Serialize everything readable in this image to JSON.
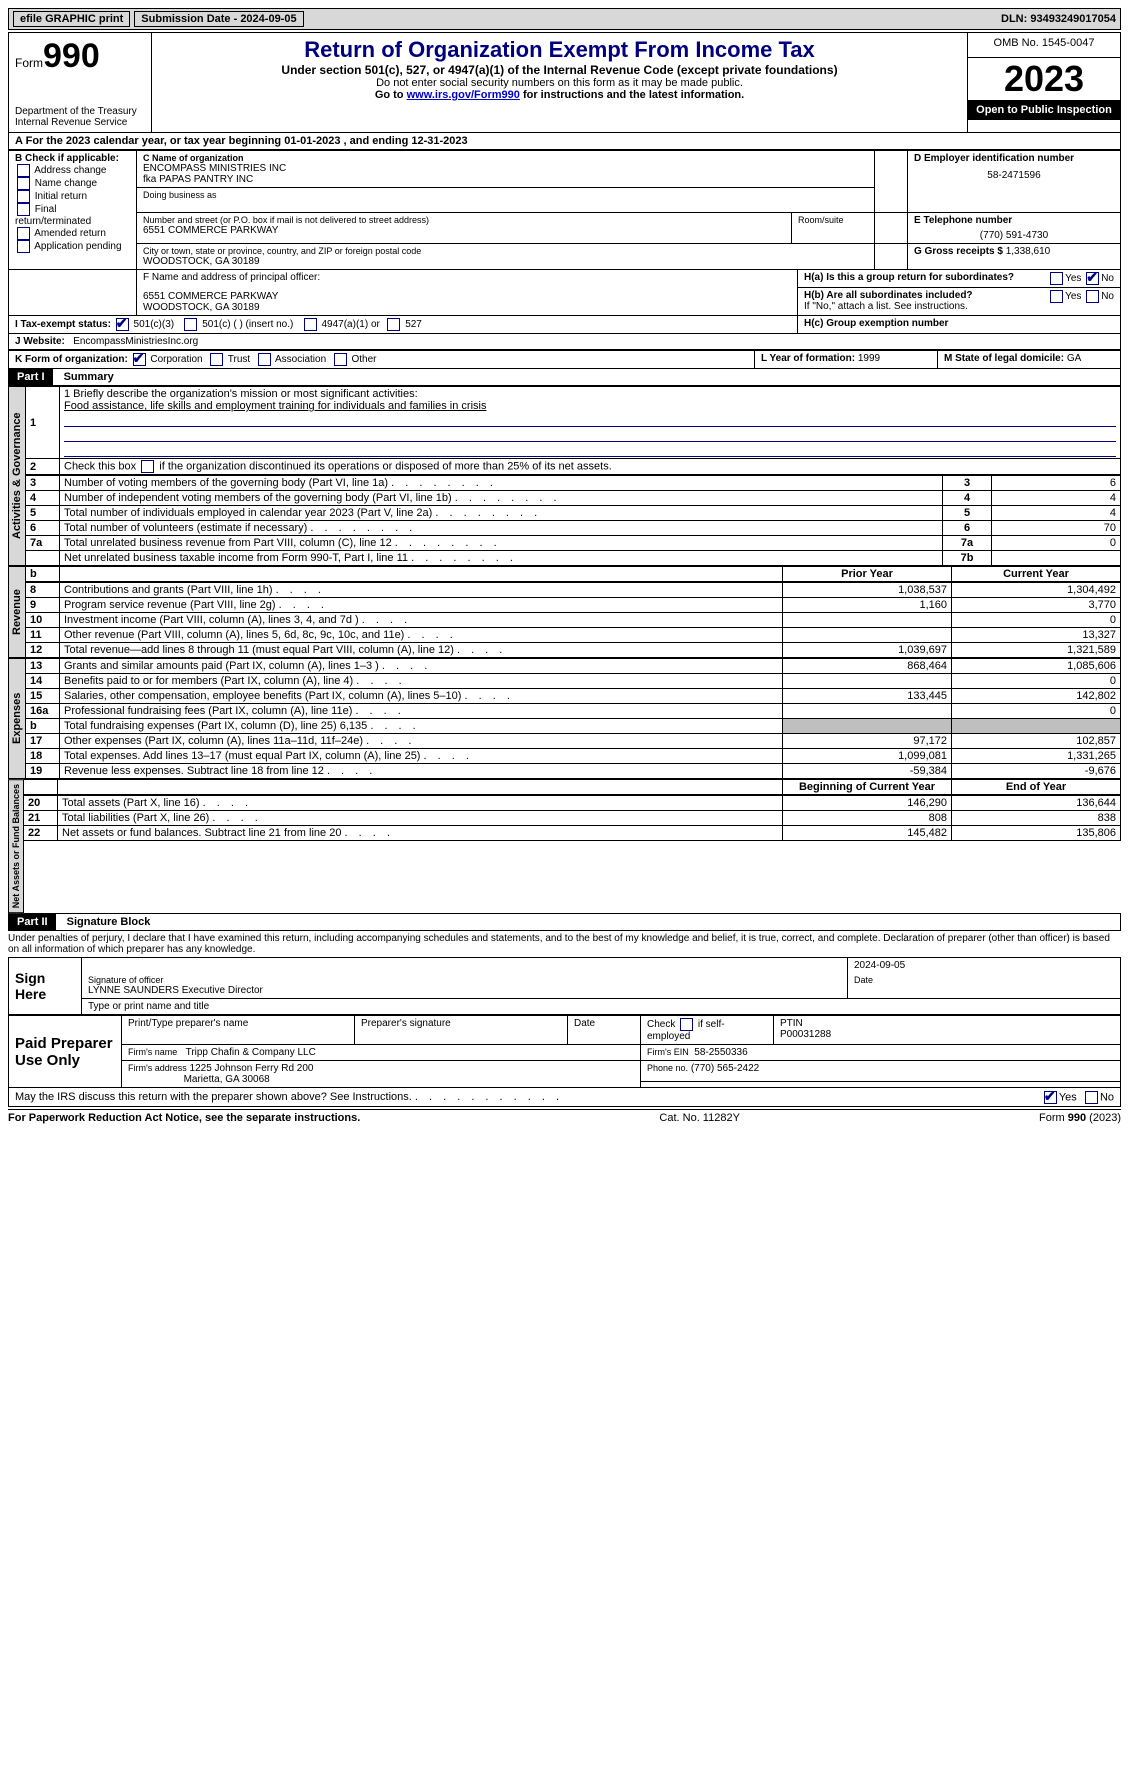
{
  "top_bar": {
    "efile": "efile GRAPHIC print",
    "submission_label": "Submission Date - 2024-09-05",
    "dln_label": "DLN: 93493249017054"
  },
  "header": {
    "form_label": "Form",
    "form_number": "990",
    "dept": "Department of the Treasury\nInternal Revenue Service",
    "title": "Return of Organization Exempt From Income Tax",
    "subtitle": "Under section 501(c), 527, or 4947(a)(1) of the Internal Revenue Code (except private foundations)",
    "note1": "Do not enter social security numbers on this form as it may be made public.",
    "note2": "Go to www.irs.gov/Form990 for instructions and the latest information.",
    "link": "www.irs.gov/Form990",
    "omb": "OMB No. 1545-0047",
    "year": "2023",
    "inspection": "Open to Public Inspection"
  },
  "line_a": "For the 2023 calendar year, or tax year beginning 01-01-2023     , and ending 12-31-2023",
  "box_b": {
    "label": "B Check if applicable:",
    "items": [
      "Address change",
      "Name change",
      "Initial return",
      "Final return/terminated",
      "Amended return",
      "Application pending"
    ]
  },
  "box_c": {
    "name_label": "C Name of organization",
    "name": "ENCOMPASS MINISTRIES INC",
    "fka": "fka PAPAS PANTRY INC",
    "dba_label": "Doing business as",
    "addr_label": "Number and street (or P.O. box if mail is not delivered to street address)",
    "room_label": "Room/suite",
    "addr": "6551 COMMERCE PARKWAY",
    "city_label": "City or town, state or province, country, and ZIP or foreign postal code",
    "city": "WOODSTOCK, GA  30189"
  },
  "box_d": {
    "label": "D Employer identification number",
    "value": "58-2471596"
  },
  "box_e": {
    "label": "E Telephone number",
    "value": "(770) 591-4730"
  },
  "box_g": {
    "label": "G Gross receipts $",
    "value": "1,338,610"
  },
  "box_f": {
    "label": "F  Name and address of principal officer:",
    "addr1": "6551 COMMERCE PARKWAY",
    "addr2": "WOODSTOCK, GA  30189"
  },
  "box_h": {
    "a_label": "H(a)  Is this a group return for subordinates?",
    "b_label": "H(b)  Are all subordinates included?",
    "b_note": "If \"No,\" attach a list. See instructions.",
    "c_label": "H(c)  Group exemption number",
    "yes": "Yes",
    "no": "No"
  },
  "box_i": {
    "label": "I   Tax-exempt status:",
    "opt1": "501(c)(3)",
    "opt2": "501(c) (  ) (insert no.)",
    "opt3": "4947(a)(1) or",
    "opt4": "527"
  },
  "box_j": {
    "label": "J   Website:",
    "value": "EncompassMinistriesInc.org"
  },
  "box_k": {
    "label": "K Form of organization:",
    "opts": [
      "Corporation",
      "Trust",
      "Association",
      "Other"
    ]
  },
  "box_l": {
    "label": "L Year of formation:",
    "value": "1999"
  },
  "box_m": {
    "label": "M State of legal domicile:",
    "value": "GA"
  },
  "part1": {
    "header": "Part I",
    "title": "Summary",
    "q1_label": "1  Briefly describe the organization's mission or most significant activities:",
    "q1_value": "Food assistance, life skills and employment training for individuals and families in crisis",
    "q2": "2   Check this box       if the organization discontinued its operations or disposed of more than 25% of its net assets.",
    "rows_ag": [
      {
        "n": "3",
        "t": "Number of voting members of the governing body (Part VI, line 1a)",
        "rn": "3",
        "v": "6"
      },
      {
        "n": "4",
        "t": "Number of independent voting members of the governing body (Part VI, line 1b)",
        "rn": "4",
        "v": "4"
      },
      {
        "n": "5",
        "t": "Total number of individuals employed in calendar year 2023 (Part V, line 2a)",
        "rn": "5",
        "v": "4"
      },
      {
        "n": "6",
        "t": "Total number of volunteers (estimate if necessary)",
        "rn": "6",
        "v": "70"
      },
      {
        "n": "7a",
        "t": "Total unrelated business revenue from Part VIII, column (C), line 12",
        "rn": "7a",
        "v": "0"
      },
      {
        "n": "",
        "t": "Net unrelated business taxable income from Form 990-T, Part I, line 11",
        "rn": "7b",
        "v": ""
      }
    ],
    "col_prior": "Prior Year",
    "col_current": "Current Year",
    "rows_rev": [
      {
        "n": "8",
        "t": "Contributions and grants (Part VIII, line 1h)",
        "p": "1,038,537",
        "c": "1,304,492"
      },
      {
        "n": "9",
        "t": "Program service revenue (Part VIII, line 2g)",
        "p": "1,160",
        "c": "3,770"
      },
      {
        "n": "10",
        "t": "Investment income (Part VIII, column (A), lines 3, 4, and 7d )",
        "p": "",
        "c": "0"
      },
      {
        "n": "11",
        "t": "Other revenue (Part VIII, column (A), lines 5, 6d, 8c, 9c, 10c, and 11e)",
        "p": "",
        "c": "13,327"
      },
      {
        "n": "12",
        "t": "Total revenue—add lines 8 through 11 (must equal Part VIII, column (A), line 12)",
        "p": "1,039,697",
        "c": "1,321,589"
      }
    ],
    "rows_exp": [
      {
        "n": "13",
        "t": "Grants and similar amounts paid (Part IX, column (A), lines 1–3 )",
        "p": "868,464",
        "c": "1,085,606"
      },
      {
        "n": "14",
        "t": "Benefits paid to or for members (Part IX, column (A), line 4)",
        "p": "",
        "c": "0"
      },
      {
        "n": "15",
        "t": "Salaries, other compensation, employee benefits (Part IX, column (A), lines 5–10)",
        "p": "133,445",
        "c": "142,802"
      },
      {
        "n": "16a",
        "t": "Professional fundraising fees (Part IX, column (A), line 11e)",
        "p": "",
        "c": "0"
      },
      {
        "n": "b",
        "t": "Total fundraising expenses (Part IX, column (D), line 25) 6,135",
        "p": "GRAY",
        "c": "GRAY"
      },
      {
        "n": "17",
        "t": "Other expenses (Part IX, column (A), lines 11a–11d, 11f–24e)",
        "p": "97,172",
        "c": "102,857"
      },
      {
        "n": "18",
        "t": "Total expenses. Add lines 13–17 (must equal Part IX, column (A), line 25)",
        "p": "1,099,081",
        "c": "1,331,265"
      },
      {
        "n": "19",
        "t": "Revenue less expenses. Subtract line 18 from line 12",
        "p": "-59,384",
        "c": "-9,676"
      }
    ],
    "col_begin": "Beginning of Current Year",
    "col_end": "End of Year",
    "rows_na": [
      {
        "n": "20",
        "t": "Total assets (Part X, line 16)",
        "p": "146,290",
        "c": "136,644"
      },
      {
        "n": "21",
        "t": "Total liabilities (Part X, line 26)",
        "p": "808",
        "c": "838"
      },
      {
        "n": "22",
        "t": "Net assets or fund balances. Subtract line 21 from line 20",
        "p": "145,482",
        "c": "135,806"
      }
    ],
    "side_ag": "Activities & Governance",
    "side_rev": "Revenue",
    "side_exp": "Expenses",
    "side_na": "Net Assets or Fund Balances"
  },
  "part2": {
    "header": "Part II",
    "title": "Signature Block",
    "decl": "Under penalties of perjury, I declare that I have examined this return, including accompanying schedules and statements, and to the best of my knowledge and belief, it is true, correct, and complete. Declaration of preparer (other than officer) is based on all information of which preparer has any knowledge.",
    "sign_here": "Sign Here",
    "sig_date": "2024-09-05",
    "sig_officer_label": "Signature of officer",
    "sig_officer": "LYNNE SAUNDERS  Executive Director",
    "sig_name_label": "Type or print name and title",
    "date_label": "Date",
    "paid": "Paid Preparer Use Only",
    "prep_name_label": "Print/Type preparer's name",
    "prep_sig_label": "Preparer's signature",
    "prep_date_label": "Date",
    "prep_check": "Check        if self-employed",
    "ptin_label": "PTIN",
    "ptin": "P00031288",
    "firm_name_label": "Firm's name",
    "firm_name": "Tripp Chafin & Company LLC",
    "firm_ein_label": "Firm's EIN",
    "firm_ein": "58-2550336",
    "firm_addr_label": "Firm's address",
    "firm_addr1": "1225 Johnson Ferry Rd 200",
    "firm_addr2": "Marietta, GA  30068",
    "phone_label": "Phone no.",
    "phone": "(770) 565-2422",
    "discuss": "May the IRS discuss this return with the preparer shown above? See Instructions.",
    "yes": "Yes",
    "no": "No"
  },
  "footer": {
    "left": "For Paperwork Reduction Act Notice, see the separate instructions.",
    "mid": "Cat. No. 11282Y",
    "right_a": "Form ",
    "right_b": "990",
    "right_c": " (2023)"
  }
}
